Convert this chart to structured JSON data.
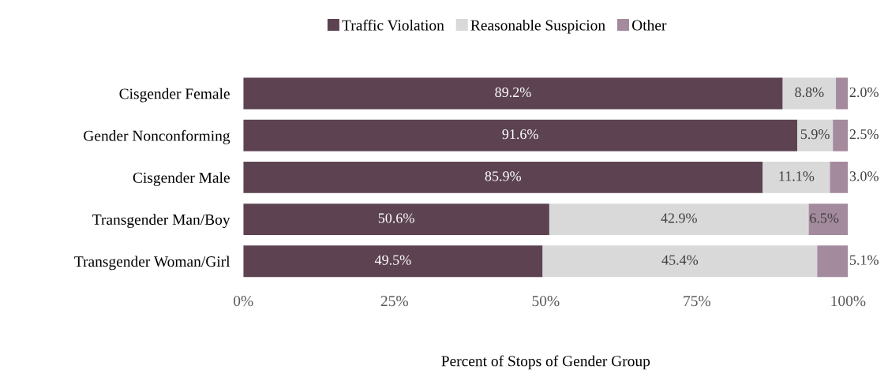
{
  "chart_data": {
    "type": "bar",
    "orientation": "horizontal",
    "stacked": true,
    "xlabel": "Percent of Stops of Gender Group",
    "categories": [
      "Cisgender Female",
      "Gender Nonconforming",
      "Cisgender Male",
      "Transgender Man/Boy",
      "Transgender Woman/Girl"
    ],
    "series": [
      {
        "name": "Traffic Violation",
        "color": "#5d4352",
        "values": [
          89.2,
          91.6,
          85.9,
          50.6,
          49.5
        ],
        "value_labels": [
          "89.2%",
          "91.6%",
          "85.9%",
          "50.6%",
          "49.5%"
        ]
      },
      {
        "name": "Reasonable Suspicion",
        "color": "#d9d9d9",
        "values": [
          8.8,
          5.9,
          11.1,
          42.9,
          45.4
        ],
        "value_labels": [
          "8.8%",
          "5.9%",
          "11.1%",
          "42.9%",
          "45.4%"
        ]
      },
      {
        "name": "Other",
        "color": "#a48a9d",
        "values": [
          2.0,
          2.5,
          3.0,
          6.5,
          5.1
        ],
        "value_labels": [
          "2.0%",
          "2.5%",
          "3.0%",
          "6.5%",
          "5.1%"
        ]
      }
    ],
    "xlim": [
      0,
      100
    ],
    "xticks": [
      {
        "value": 0,
        "label": "0%"
      },
      {
        "value": 25,
        "label": "25%"
      },
      {
        "value": 50,
        "label": "50%"
      },
      {
        "value": 75,
        "label": "75%"
      },
      {
        "value": 100,
        "label": "100%"
      }
    ],
    "legend": "top",
    "grid": false
  }
}
